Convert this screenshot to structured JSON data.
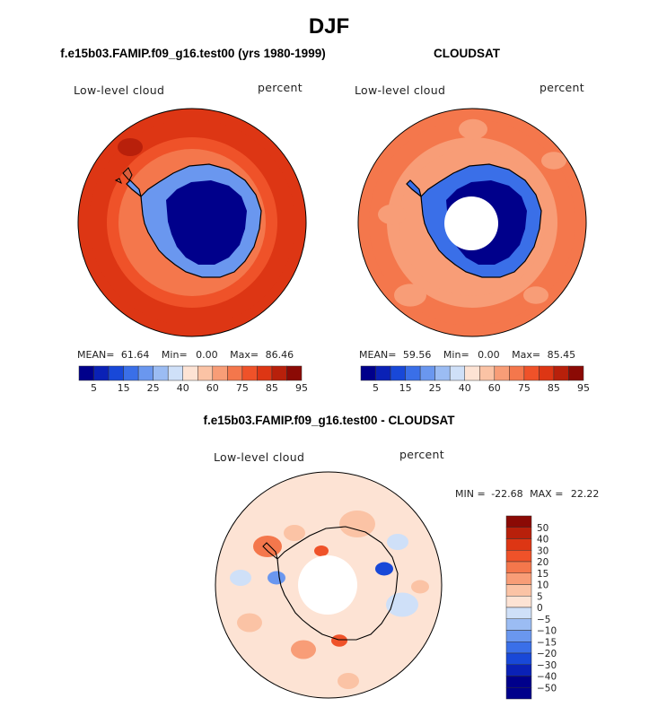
{
  "page": {
    "title": "DJF",
    "diff_title": "f.e15b03.FAMIP.f09_g16.test00 - CLOUDSAT"
  },
  "colors": {
    "cool": [
      "#00008b",
      "#0a21b6",
      "#1848d8",
      "#3a6fe8",
      "#6a97ef",
      "#9bbcf3",
      "#cfe0f8"
    ],
    "warm": [
      "#fde3d4",
      "#fbc3a5",
      "#f89d77",
      "#f4774c",
      "#ef5229",
      "#dd3614",
      "#b8200b",
      "#8b0a05"
    ],
    "contour": "#000000"
  },
  "chart_data": [
    {
      "type": "heatmap",
      "name_key": "model",
      "title": "f.e15b03.FAMIP.f09_g16.test00 (yrs 1980-1999)",
      "variable": "Low-level cloud",
      "units": "percent",
      "stats": {
        "mean_label": "MEAN=",
        "mean": "61.64",
        "min_label": "Min=",
        "min": "0.00",
        "max_label": "Max=",
        "max": "86.46"
      },
      "colorbar_ticks": [
        "5",
        "15",
        "25",
        "40",
        "60",
        "75",
        "85",
        "95"
      ],
      "colorbar_levels": 15,
      "projection": "south-polar-stereographic",
      "ocean_level": 82,
      "coast_level": 68,
      "interior_level": 2,
      "missing_pole": false
    },
    {
      "type": "heatmap",
      "name_key": "obs",
      "title": "CLOUDSAT",
      "variable": "Low-level cloud",
      "units": "percent",
      "stats": {
        "mean_label": "MEAN=",
        "mean": "59.56",
        "min_label": "Min=",
        "min": "0.00",
        "max_label": "Max=",
        "max": "85.45"
      },
      "colorbar_ticks": [
        "5",
        "15",
        "25",
        "40",
        "60",
        "75",
        "85",
        "95"
      ],
      "colorbar_levels": 15,
      "projection": "south-polar-stereographic",
      "ocean_level": 70,
      "coast_level": 60,
      "interior_level": 2,
      "missing_pole": true
    },
    {
      "type": "heatmap",
      "name_key": "diff",
      "variable": "Low-level cloud",
      "units": "percent",
      "stats": {
        "min_label": "MIN =",
        "min": "-22.68",
        "max_label": "MAX =",
        "max": "22.22"
      },
      "colorbar_ticks": [
        "50",
        "40",
        "30",
        "20",
        "15",
        "10",
        "5",
        "0",
        "−5",
        "−10",
        "−15",
        "−20",
        "−30",
        "−40",
        "−50"
      ],
      "projection": "south-polar-stereographic",
      "missing_pole": true
    }
  ]
}
